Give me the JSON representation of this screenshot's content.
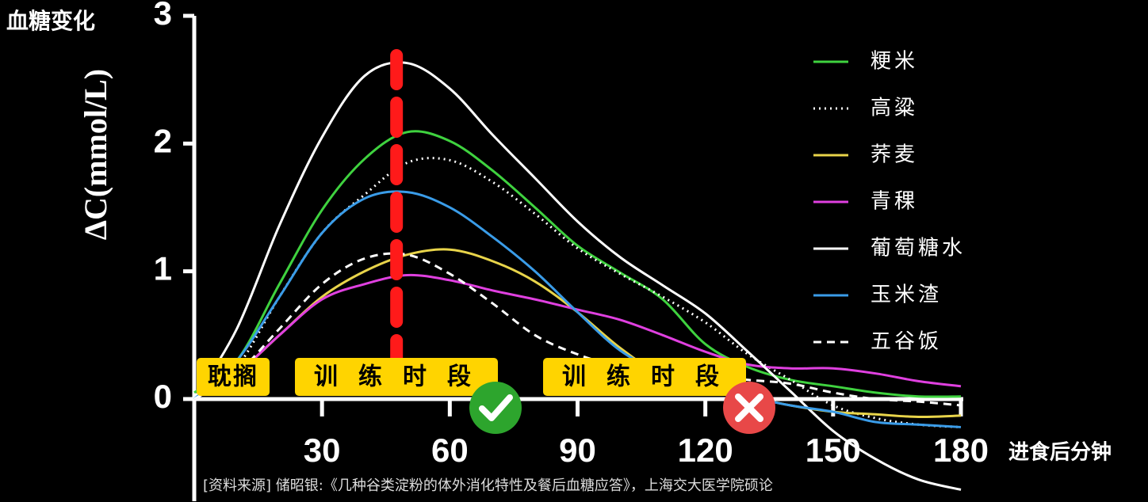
{
  "chart_data": {
    "type": "line",
    "title": "血糖变化",
    "y_label": "ΔC(mmol/L)",
    "x_label": "进食后分钟",
    "source": "[资料来源] 储昭银:《几种谷类淀粉的体外消化特性及餐后血糖应答》，上海交大医学院硕论",
    "x": [
      0,
      10,
      20,
      30,
      40,
      50,
      60,
      70,
      80,
      90,
      100,
      110,
      120,
      130,
      140,
      150,
      160,
      170,
      180
    ],
    "series": [
      {
        "name": "粳米",
        "color": "#3fd23f",
        "style": "solid",
        "values": [
          0.05,
          0.3,
          0.9,
          1.48,
          1.88,
          2.09,
          2.02,
          1.79,
          1.5,
          1.2,
          0.99,
          0.78,
          0.43,
          0.25,
          0.15,
          0.1,
          0.05,
          0.02,
          0.02
        ]
      },
      {
        "name": "高粱",
        "color": "#ffffff",
        "style": "dotted",
        "values": [
          0,
          0.25,
          0.8,
          1.3,
          1.6,
          1.85,
          1.87,
          1.7,
          1.45,
          1.18,
          0.98,
          0.8,
          0.6,
          0.35,
          0.15,
          -0.05,
          -0.15,
          -0.2,
          -0.22
        ]
      },
      {
        "name": "荞麦",
        "color": "#e8d44a",
        "style": "solid",
        "values": [
          0,
          0.2,
          0.5,
          0.8,
          1.0,
          1.13,
          1.17,
          1.08,
          0.92,
          0.68,
          0.4,
          0.18,
          0.08,
          0.02,
          -0.05,
          -0.1,
          -0.12,
          -0.14,
          -0.13
        ]
      },
      {
        "name": "青稞",
        "color": "#e040e0",
        "style": "solid",
        "values": [
          0,
          0.2,
          0.5,
          0.78,
          0.9,
          0.97,
          0.93,
          0.85,
          0.78,
          0.7,
          0.62,
          0.5,
          0.37,
          0.27,
          0.24,
          0.24,
          0.2,
          0.14,
          0.1
        ]
      },
      {
        "name": "葡萄糖水",
        "color": "#ffffff",
        "style": "solid",
        "values": [
          0,
          0.55,
          1.36,
          2.05,
          2.53,
          2.63,
          2.43,
          2.07,
          1.73,
          1.39,
          1.11,
          0.89,
          0.67,
          0.37,
          0.06,
          -0.25,
          -0.47,
          -0.63,
          -0.71
        ]
      },
      {
        "name": "玉米渣",
        "color": "#3a9ce8",
        "style": "solid",
        "values": [
          0,
          0.3,
          0.8,
          1.3,
          1.57,
          1.62,
          1.5,
          1.27,
          1.0,
          0.68,
          0.38,
          0.2,
          0.1,
          0.02,
          -0.05,
          -0.1,
          -0.18,
          -0.2,
          -0.22
        ]
      },
      {
        "name": "五谷饭",
        "color": "#ffffff",
        "style": "dashed",
        "values": [
          0,
          0.2,
          0.55,
          0.9,
          1.1,
          1.13,
          0.98,
          0.75,
          0.5,
          0.35,
          0.25,
          0.2,
          0.18,
          0.15,
          0.12,
          0.05,
          0,
          -0.02,
          -0.05
        ]
      }
    ],
    "xlim": [
      0,
      180
    ],
    "xticks": [
      30,
      60,
      90,
      120,
      150,
      180
    ],
    "ylim": [
      -0.8,
      3
    ],
    "yticks": [
      0,
      1,
      2,
      3
    ],
    "highlight_x": 47.5,
    "highlight_color": "#ff1a1a",
    "legend": "top-right",
    "annotations": [
      "耽搁",
      "训练时段",
      "训练时段"
    ]
  }
}
